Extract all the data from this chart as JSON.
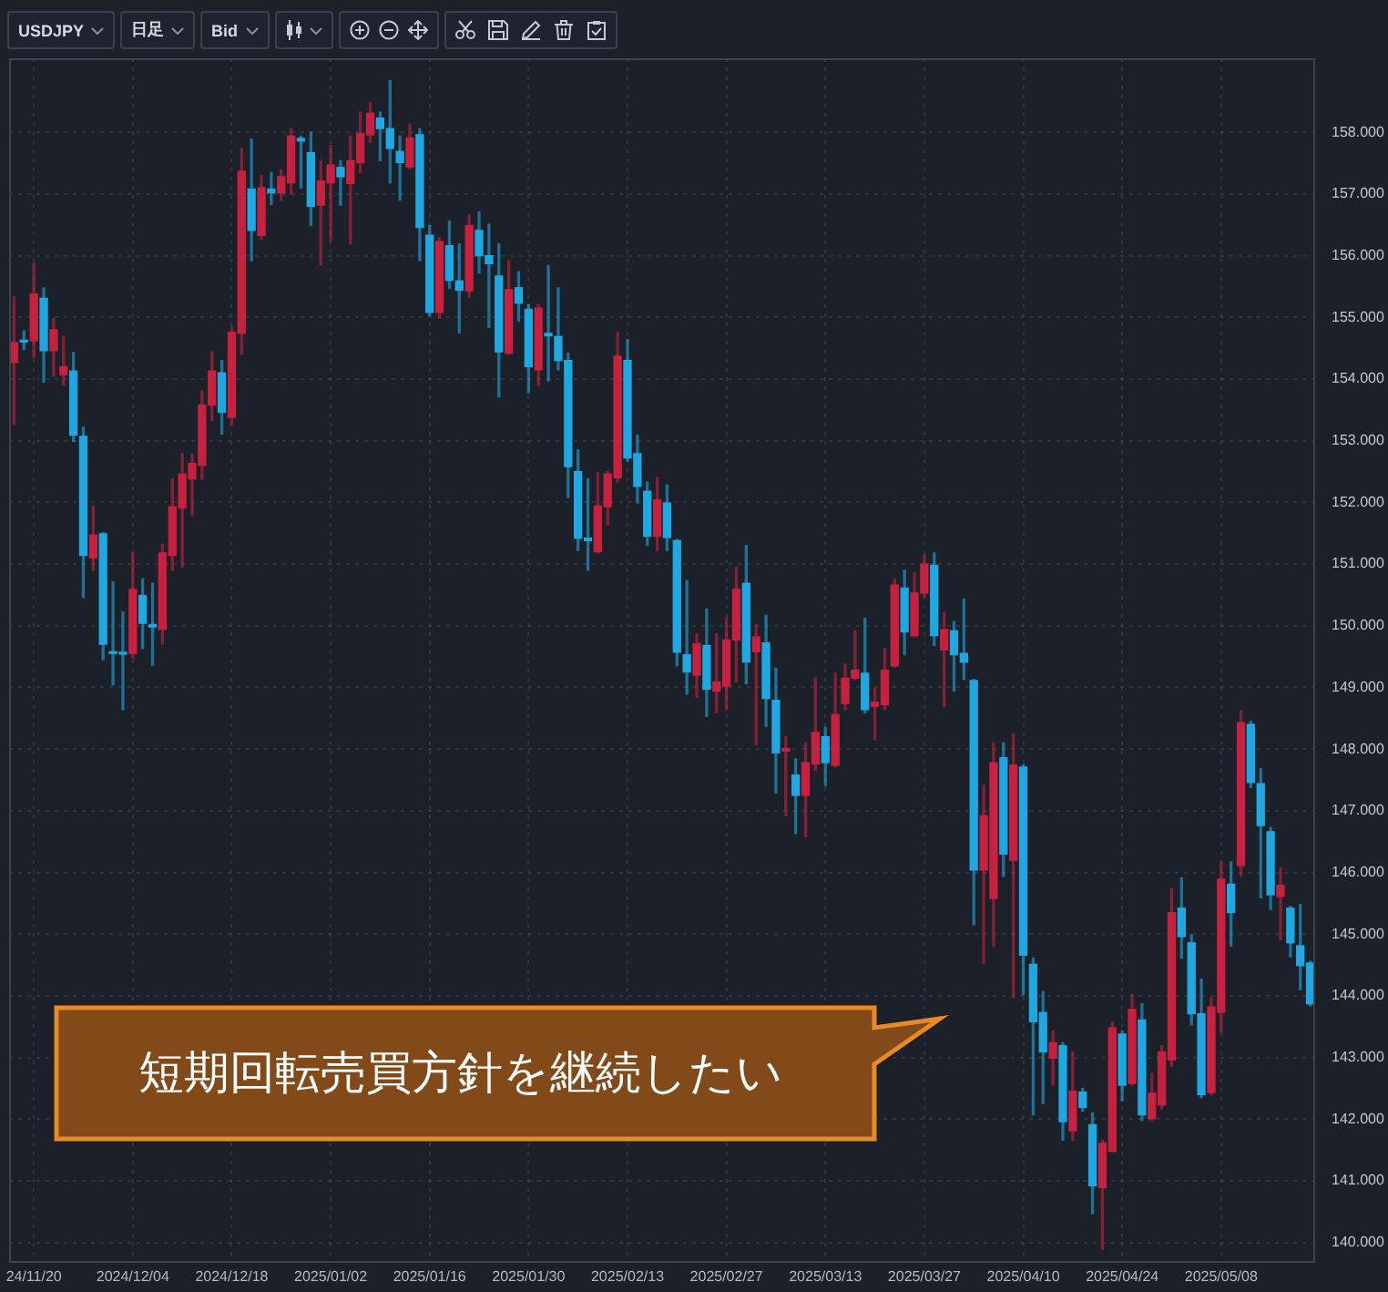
{
  "chart_data": {
    "type": "candlestick",
    "title": "USDJPY",
    "annotations": [
      "日足",
      "Bid",
      "短期回転売買方針を継続したい"
    ],
    "categories": [
      null,
      null,
      "24/11/20",
      null,
      null,
      null,
      null,
      null,
      null,
      null,
      null,
      null,
      "2024/12/04",
      null,
      null,
      null,
      null,
      null,
      null,
      null,
      null,
      null,
      "2024/12/18",
      null,
      null,
      null,
      null,
      null,
      null,
      null,
      null,
      null,
      "2025/01/02",
      null,
      null,
      null,
      null,
      null,
      null,
      null,
      null,
      null,
      "2025/01/16",
      null,
      null,
      null,
      null,
      null,
      null,
      null,
      null,
      null,
      "2025/01/30",
      null,
      null,
      null,
      null,
      null,
      null,
      null,
      null,
      null,
      "2025/02/13",
      null,
      null,
      null,
      null,
      null,
      null,
      null,
      null,
      null,
      "2025/02/27",
      null,
      null,
      null,
      null,
      null,
      null,
      null,
      null,
      null,
      "2025/03/13",
      null,
      null,
      null,
      null,
      null,
      null,
      null,
      null,
      null,
      "2025/03/27",
      null,
      null,
      null,
      null,
      null,
      null,
      null,
      null,
      null,
      "2025/04/10",
      null,
      null,
      null,
      null,
      null,
      null,
      null,
      null,
      null,
      "2025/04/24",
      null,
      null,
      null,
      null,
      null,
      null,
      null,
      null,
      null,
      "2025/05/08",
      null,
      null,
      null,
      null,
      null,
      null,
      null,
      null,
      null
    ],
    "ohlc": [
      [
        154.27,
        155.33,
        153.26,
        154.59
      ],
      [
        154.63,
        154.78,
        154.48,
        154.6
      ],
      [
        154.62,
        155.87,
        154.35,
        155.38
      ],
      [
        155.31,
        155.48,
        153.95,
        154.46
      ],
      [
        154.46,
        154.98,
        154.05,
        154.8
      ],
      [
        154.07,
        154.69,
        153.9,
        154.2
      ],
      [
        154.13,
        154.43,
        152.99,
        153.09
      ],
      [
        153.07,
        153.22,
        150.46,
        151.14
      ],
      [
        151.1,
        151.94,
        150.9,
        151.47
      ],
      [
        151.49,
        151.51,
        149.45,
        149.7
      ],
      [
        149.58,
        150.71,
        149.04,
        149.55
      ],
      [
        149.56,
        150.22,
        148.64,
        149.54
      ],
      [
        149.55,
        151.18,
        149.48,
        150.59
      ],
      [
        150.49,
        150.76,
        149.63,
        150.04
      ],
      [
        150.02,
        150.69,
        149.36,
        149.98
      ],
      [
        149.94,
        151.32,
        149.7,
        151.18
      ],
      [
        151.14,
        152.38,
        150.9,
        151.93
      ],
      [
        151.91,
        152.79,
        150.95,
        152.46
      ],
      [
        152.38,
        152.78,
        151.79,
        152.63
      ],
      [
        152.6,
        153.81,
        152.38,
        153.58
      ],
      [
        153.58,
        154.44,
        153.33,
        154.13
      ],
      [
        154.1,
        154.3,
        153.11,
        153.46
      ],
      [
        153.38,
        154.84,
        153.26,
        154.76
      ],
      [
        154.74,
        157.74,
        154.4,
        157.37
      ],
      [
        157.08,
        157.89,
        155.92,
        156.41
      ],
      [
        156.33,
        157.3,
        156.26,
        157.1
      ],
      [
        157.08,
        157.35,
        156.83,
        157.02
      ],
      [
        157.02,
        157.39,
        156.9,
        157.28
      ],
      [
        157.18,
        158.06,
        157.0,
        157.94
      ],
      [
        157.9,
        157.94,
        157.1,
        157.86
      ],
      [
        157.67,
        158.0,
        156.49,
        156.8
      ],
      [
        156.82,
        157.54,
        155.85,
        157.21
      ],
      [
        157.18,
        157.79,
        156.24,
        157.47
      ],
      [
        157.43,
        157.54,
        156.82,
        157.28
      ],
      [
        157.17,
        157.94,
        156.19,
        157.54
      ],
      [
        157.51,
        158.33,
        157.35,
        157.98
      ],
      [
        157.96,
        158.48,
        157.84,
        158.31
      ],
      [
        158.23,
        158.33,
        157.54,
        158.06
      ],
      [
        158.06,
        158.84,
        157.18,
        157.74
      ],
      [
        157.69,
        157.94,
        156.9,
        157.51
      ],
      [
        157.44,
        158.13,
        157.41,
        157.91
      ],
      [
        157.96,
        158.06,
        155.92,
        156.46
      ],
      [
        156.33,
        156.49,
        155.03,
        155.08
      ],
      [
        155.08,
        156.29,
        154.99,
        156.23
      ],
      [
        156.16,
        156.56,
        155.47,
        155.6
      ],
      [
        155.59,
        156.19,
        154.75,
        155.44
      ],
      [
        155.43,
        156.66,
        155.33,
        156.49
      ],
      [
        156.41,
        156.71,
        155.72,
        156.0
      ],
      [
        156.0,
        156.51,
        154.84,
        155.87
      ],
      [
        155.67,
        156.19,
        153.71,
        154.44
      ],
      [
        154.42,
        155.92,
        154.4,
        155.45
      ],
      [
        155.48,
        155.74,
        154.94,
        155.23
      ],
      [
        155.13,
        155.21,
        153.78,
        154.2
      ],
      [
        154.15,
        155.21,
        153.9,
        155.15
      ],
      [
        154.74,
        155.84,
        153.97,
        154.7
      ],
      [
        154.69,
        155.48,
        154.15,
        154.3
      ],
      [
        154.3,
        154.42,
        152.08,
        152.58
      ],
      [
        152.5,
        152.85,
        151.22,
        151.42
      ],
      [
        151.42,
        152.38,
        150.9,
        151.38
      ],
      [
        151.2,
        152.48,
        151.18,
        151.94
      ],
      [
        151.93,
        152.5,
        151.64,
        152.46
      ],
      [
        152.4,
        154.76,
        152.33,
        154.37
      ],
      [
        154.3,
        154.64,
        152.67,
        152.72
      ],
      [
        152.79,
        153.09,
        151.99,
        152.26
      ],
      [
        152.18,
        152.33,
        151.3,
        151.45
      ],
      [
        151.45,
        152.4,
        151.22,
        152.04
      ],
      [
        151.99,
        152.28,
        151.22,
        151.43
      ],
      [
        151.38,
        151.4,
        149.35,
        149.57
      ],
      [
        149.53,
        150.73,
        148.89,
        149.25
      ],
      [
        149.2,
        149.87,
        148.84,
        149.71
      ],
      [
        149.68,
        150.27,
        148.53,
        148.97
      ],
      [
        148.94,
        149.87,
        148.59,
        149.09
      ],
      [
        149.02,
        150.12,
        148.64,
        149.77
      ],
      [
        149.77,
        150.95,
        149.09,
        150.59
      ],
      [
        150.69,
        151.3,
        149.06,
        149.41
      ],
      [
        149.58,
        150.02,
        148.07,
        149.82
      ],
      [
        149.72,
        150.17,
        148.37,
        148.82
      ],
      [
        148.79,
        149.31,
        147.29,
        147.94
      ],
      [
        147.97,
        148.2,
        146.92,
        148.01
      ],
      [
        147.58,
        147.84,
        146.63,
        147.25
      ],
      [
        147.25,
        148.1,
        146.58,
        147.78
      ],
      [
        147.76,
        149.15,
        147.66,
        148.27
      ],
      [
        148.2,
        148.35,
        147.41,
        147.78
      ],
      [
        147.74,
        149.23,
        147.71,
        148.56
      ],
      [
        148.74,
        149.38,
        148.64,
        149.15
      ],
      [
        149.15,
        149.92,
        149.13,
        149.28
      ],
      [
        149.23,
        150.12,
        148.59,
        148.64
      ],
      [
        148.69,
        148.99,
        148.15,
        148.76
      ],
      [
        148.72,
        149.63,
        148.64,
        149.28
      ],
      [
        149.35,
        150.76,
        149.33,
        150.66
      ],
      [
        150.61,
        150.9,
        149.53,
        149.9
      ],
      [
        149.84,
        150.86,
        149.82,
        150.53
      ],
      [
        150.53,
        151.15,
        150.46,
        151.0
      ],
      [
        150.98,
        151.18,
        149.68,
        149.84
      ],
      [
        149.61,
        150.22,
        148.69,
        149.94
      ],
      [
        149.92,
        150.07,
        148.94,
        149.53
      ],
      [
        149.55,
        150.43,
        149.13,
        149.41
      ],
      [
        149.11,
        149.13,
        145.15,
        146.04
      ],
      [
        146.04,
        147.41,
        144.53,
        146.92
      ],
      [
        145.58,
        148.1,
        144.81,
        147.78
      ],
      [
        147.86,
        148.1,
        145.94,
        146.3
      ],
      [
        146.2,
        148.25,
        143.97,
        147.74
      ],
      [
        147.71,
        147.75,
        144.02,
        144.66
      ],
      [
        144.51,
        144.61,
        142.07,
        143.58
      ],
      [
        143.73,
        144.07,
        142.25,
        143.09
      ],
      [
        142.99,
        143.43,
        142.55,
        143.24
      ],
      [
        143.19,
        143.24,
        141.66,
        141.96
      ],
      [
        141.81,
        143.09,
        141.66,
        142.45
      ],
      [
        142.44,
        142.5,
        142.13,
        142.19
      ],
      [
        141.91,
        142.1,
        140.47,
        140.92
      ],
      [
        140.89,
        141.66,
        139.89,
        141.61
      ],
      [
        141.48,
        143.58,
        141.47,
        143.48
      ],
      [
        143.38,
        143.43,
        142.3,
        142.55
      ],
      [
        142.58,
        144.02,
        142.55,
        143.78
      ],
      [
        143.61,
        143.87,
        141.98,
        142.07
      ],
      [
        142.01,
        142.74,
        141.98,
        142.42
      ],
      [
        142.23,
        143.19,
        142.17,
        143.09
      ],
      [
        142.96,
        145.74,
        142.86,
        145.35
      ],
      [
        145.42,
        145.91,
        144.61,
        144.96
      ],
      [
        144.86,
        144.99,
        143.53,
        143.71
      ],
      [
        143.71,
        144.27,
        142.35,
        142.4
      ],
      [
        142.43,
        143.97,
        142.4,
        143.82
      ],
      [
        143.73,
        146.17,
        143.41,
        145.89
      ],
      [
        145.81,
        146.17,
        144.81,
        145.35
      ],
      [
        146.11,
        148.62,
        145.94,
        148.43
      ],
      [
        148.4,
        148.45,
        147.38,
        147.46
      ],
      [
        147.44,
        147.68,
        145.59,
        146.76
      ],
      [
        146.66,
        146.73,
        145.4,
        145.64
      ],
      [
        145.61,
        146.07,
        144.91,
        145.79
      ],
      [
        145.42,
        145.45,
        144.63,
        144.86
      ],
      [
        144.81,
        145.48,
        144.1,
        144.49
      ],
      [
        144.53,
        144.56,
        143.84,
        143.87
      ]
    ],
    "colors": [
      "#c8213f",
      "#1fa7e2",
      "#c8213f",
      "#1fa7e2",
      "#c8213f",
      "#c8213f",
      "#1fa7e2",
      "#1fa7e2",
      "#c8213f",
      "#1fa7e2",
      "#1fa7e2",
      "#1fa7e2",
      "#c8213f",
      "#1fa7e2",
      "#1fa7e2",
      "#c8213f",
      "#c8213f",
      "#c8213f",
      "#c8213f",
      "#c8213f",
      "#c8213f",
      "#1fa7e2",
      "#c8213f",
      "#c8213f",
      "#1fa7e2",
      "#c8213f",
      "#1fa7e2",
      "#c8213f",
      "#c8213f",
      "#1fa7e2",
      "#1fa7e2",
      "#c8213f",
      "#c8213f",
      "#1fa7e2",
      "#c8213f",
      "#c8213f",
      "#c8213f",
      "#1fa7e2",
      "#1fa7e2",
      "#1fa7e2",
      "#c8213f",
      "#1fa7e2",
      "#1fa7e2",
      "#c8213f",
      "#1fa7e2",
      "#1fa7e2",
      "#c8213f",
      "#1fa7e2",
      "#1fa7e2",
      "#1fa7e2",
      "#c8213f",
      "#1fa7e2",
      "#1fa7e2",
      "#c8213f",
      "#1fa7e2",
      "#1fa7e2",
      "#1fa7e2",
      "#1fa7e2",
      "#1fa7e2",
      "#c8213f",
      "#c8213f",
      "#c8213f",
      "#1fa7e2",
      "#1fa7e2",
      "#1fa7e2",
      "#c8213f",
      "#1fa7e2",
      "#1fa7e2",
      "#1fa7e2",
      "#c8213f",
      "#1fa7e2",
      "#c8213f",
      "#c8213f",
      "#c8213f",
      "#1fa7e2",
      "#c8213f",
      "#1fa7e2",
      "#1fa7e2",
      "#c8213f",
      "#1fa7e2",
      "#c8213f",
      "#c8213f",
      "#1fa7e2",
      "#c8213f",
      "#c8213f",
      "#c8213f",
      "#1fa7e2",
      "#c8213f",
      "#c8213f",
      "#c8213f",
      "#1fa7e2",
      "#c8213f",
      "#c8213f",
      "#1fa7e2",
      "#c8213f",
      "#1fa7e2",
      "#1fa7e2",
      "#1fa7e2",
      "#c8213f",
      "#c8213f",
      "#1fa7e2",
      "#c8213f",
      "#1fa7e2",
      "#1fa7e2",
      "#1fa7e2",
      "#c8213f",
      "#1fa7e2",
      "#c8213f",
      "#1fa7e2",
      "#1fa7e2",
      "#c8213f",
      "#c8213f",
      "#1fa7e2",
      "#c8213f",
      "#1fa7e2",
      "#c8213f",
      "#c8213f",
      "#c8213f",
      "#1fa7e2",
      "#1fa7e2",
      "#1fa7e2",
      "#c8213f",
      "#c8213f",
      "#1fa7e2",
      "#c8213f",
      "#1fa7e2",
      "#1fa7e2",
      "#1fa7e2",
      "#c8213f",
      "#1fa7e2",
      "#1fa7e2",
      "#1fa7e2"
    ],
    "ylim": [
      139.7,
      159.2
    ],
    "yticks": [
      {
        "value": 140,
        "label": "140.000"
      },
      {
        "value": 141,
        "label": "141.000"
      },
      {
        "value": 142,
        "label": "142.000"
      },
      {
        "value": 143,
        "label": "143.000"
      },
      {
        "value": 144,
        "label": "144.000"
      },
      {
        "value": 145,
        "label": "145.000"
      },
      {
        "value": 146,
        "label": "146.000"
      },
      {
        "value": 147,
        "label": "147.000"
      },
      {
        "value": 148,
        "label": "148.000"
      },
      {
        "value": 149,
        "label": "149.000"
      },
      {
        "value": 150,
        "label": "150.000"
      },
      {
        "value": 151,
        "label": "151.000"
      },
      {
        "value": 152,
        "label": "152.000"
      },
      {
        "value": 153,
        "label": "153.000"
      },
      {
        "value": 154,
        "label": "154.000"
      },
      {
        "value": 155,
        "label": "155.000"
      },
      {
        "value": 156,
        "label": "156.000"
      },
      {
        "value": 157,
        "label": "157.000"
      },
      {
        "value": 158,
        "label": "158.000"
      }
    ],
    "grid": true
  }
}
